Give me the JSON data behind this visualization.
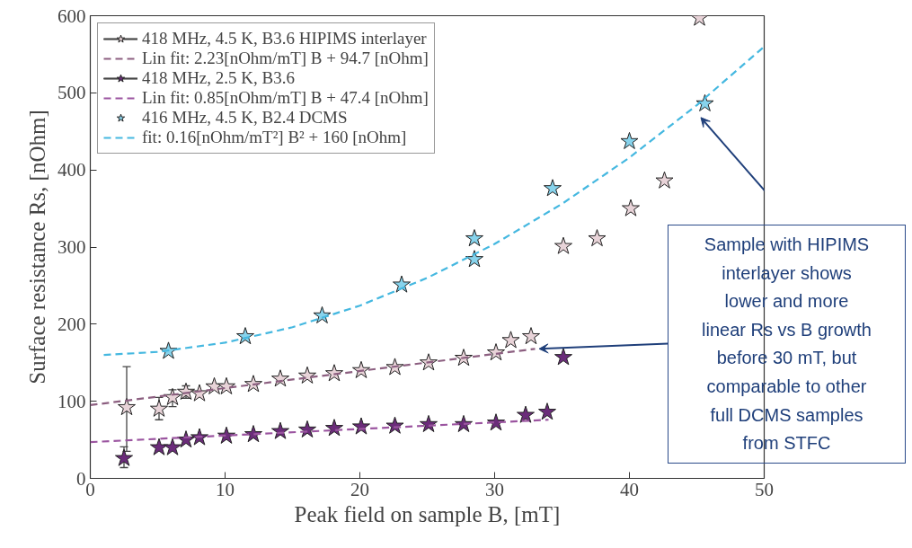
{
  "chart_data": {
    "type": "scatter",
    "xlabel": "Peak field on sample B, [mT]",
    "ylabel": "Surface resistance Rs, [nOhm]",
    "xlim": [
      0,
      50
    ],
    "xticks": [
      0,
      10,
      20,
      30,
      40,
      50
    ],
    "ylim": [
      0,
      600
    ],
    "yticks": [
      0,
      100,
      200,
      300,
      400,
      500,
      600
    ],
    "grid": false,
    "legend": "top left",
    "series": [
      {
        "name": "418 MHz, 4.5 K, B3.6 HIPIMS interlayer",
        "marker": "star",
        "color": "#e8d3d8",
        "x": [
          2.7,
          5.1,
          6.1,
          7.1,
          8.1,
          9.2,
          10.1,
          12.1,
          14.1,
          16.1,
          18.1,
          20.1,
          22.6,
          25.1,
          27.7,
          30.1,
          31.2,
          32.7,
          35.1,
          37.6,
          40.1,
          42.6,
          45.2
        ],
        "values": [
          92,
          90,
          105,
          112,
          110,
          119,
          119,
          122,
          129,
          133,
          136,
          140,
          144,
          150,
          156,
          163,
          179,
          184,
          301,
          311,
          350,
          386,
          597
        ],
        "errors": [
          [
            35,
            145
          ],
          [
            76,
            105
          ],
          [
            93,
            115
          ],
          [
            104,
            120
          ],
          null,
          null,
          null,
          null,
          null,
          null,
          null,
          null,
          null,
          null,
          null,
          null,
          null,
          null,
          null,
          null,
          null,
          null,
          null
        ]
      },
      {
        "name": "Lin fit: 2.23[nOhm/mT] B + 94.7 [nOhm]",
        "type": "line",
        "line_style": "dashed",
        "color": "#8c5f80",
        "x": [
          0,
          33
        ],
        "values": [
          95,
          168
        ]
      },
      {
        "name": "418 MHz, 2.5 K, B3.6",
        "marker": "star",
        "color": "#6b2c7a",
        "x": [
          2.5,
          5.1,
          6.1,
          7.1,
          8.1,
          10.1,
          12.1,
          14.1,
          16.1,
          18.1,
          20.1,
          22.6,
          25.1,
          27.7,
          30.1,
          32.3,
          33.9,
          35.1
        ],
        "values": [
          26,
          40,
          40,
          50,
          53,
          55,
          57,
          61,
          63,
          65,
          67,
          68,
          70,
          70,
          72,
          82,
          86,
          157
        ],
        "errors": [
          [
            14,
            41
          ],
          null,
          null,
          null,
          null,
          null,
          null,
          null,
          null,
          null,
          null,
          null,
          null,
          null,
          null,
          null,
          null,
          null
        ]
      },
      {
        "name": "Lin fit: 0.85[nOhm/mT] B + 47.4 [nOhm]",
        "type": "line",
        "line_style": "dashed",
        "color": "#9b55a0",
        "x": [
          0,
          34
        ],
        "values": [
          47,
          76
        ]
      },
      {
        "name": "416 MHz, 4.5 K, B2.4 DCMS",
        "marker": "star",
        "color": "#87d3ec",
        "x": [
          5.8,
          11.5,
          17.2,
          23.1,
          28.5,
          28.5,
          34.3,
          40.0,
          45.6
        ],
        "values": [
          165,
          184,
          211,
          251,
          284,
          311,
          376,
          437,
          486
        ]
      },
      {
        "name": "fit: 0.16[nOhm/mT²] B² + 160 [nOhm]",
        "type": "line",
        "line_style": "dashed",
        "color": "#45b8e0",
        "x": [
          1,
          5,
          10,
          15,
          20,
          25,
          30,
          35,
          40,
          45,
          50
        ],
        "values": [
          160,
          164,
          176,
          196,
          224,
          260,
          304,
          356,
          416,
          484,
          560
        ]
      }
    ],
    "annotations": [
      "Sample with HIPIMS\ninterlayer shows\nlower and more\nlinear Rs vs B growth\nbefore 30 mT, but\ncomparable to other\nfull DCMS samples\nfrom STFC"
    ]
  }
}
